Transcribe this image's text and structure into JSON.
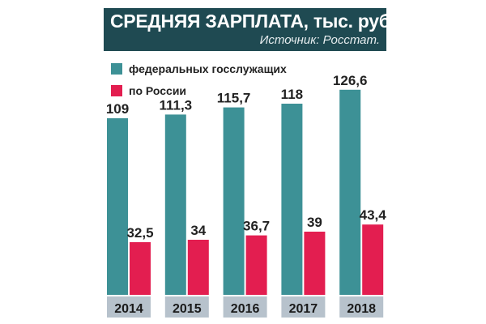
{
  "chart_data": {
    "type": "bar",
    "title": "СРЕДНЯЯ ЗАРПЛАТА, тыс. руб.",
    "subtitle": "Источник: Росстат.",
    "categories": [
      "2014",
      "2015",
      "2016",
      "2017",
      "2018"
    ],
    "series": [
      {
        "name": "федеральных госслужащих",
        "values": [
          109,
          111.3,
          115.7,
          118,
          126.6
        ],
        "labels": [
          "109",
          "111,3",
          "115,7",
          "118",
          "126,6"
        ],
        "color": "#3d9196"
      },
      {
        "name": "по России",
        "values": [
          32.5,
          34,
          36.7,
          39,
          43.4
        ],
        "labels": [
          "32,5",
          "34",
          "36,7",
          "39",
          "43,4"
        ],
        "color": "#e31e50"
      }
    ],
    "ylim": [
      0,
      130
    ],
    "grid": false,
    "legend": "top-left",
    "category_box_color": "#b7c2cc"
  }
}
